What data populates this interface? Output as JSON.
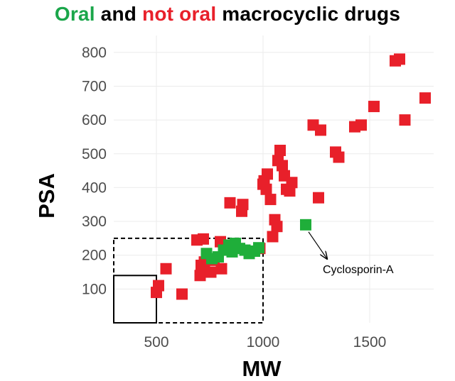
{
  "title_parts": [
    {
      "text": "Oral",
      "color": "#1aa64a"
    },
    {
      "text": " and ",
      "color": "#000000"
    },
    {
      "text": "not oral",
      "color": "#e8202a"
    },
    {
      "text": " macrocyclic drugs",
      "color": "#000000"
    }
  ],
  "chart_data": {
    "type": "scatter",
    "title": "Oral and not oral macrocyclic drugs",
    "xlabel": "MW",
    "ylabel": "PSA",
    "xlim": [
      300,
      1800
    ],
    "ylim": [
      0,
      850
    ],
    "x_ticks": [
      500,
      1000,
      1500
    ],
    "y_ticks": [
      100,
      200,
      300,
      400,
      500,
      600,
      700,
      800
    ],
    "grid": true,
    "marker": "square",
    "series": [
      {
        "name": "Oral",
        "color": "#1fae3a",
        "points": [
          [
            735,
            205
          ],
          [
            760,
            190
          ],
          [
            790,
            195
          ],
          [
            815,
            215
          ],
          [
            840,
            230
          ],
          [
            855,
            210
          ],
          [
            870,
            235
          ],
          [
            890,
            220
          ],
          [
            915,
            215
          ],
          [
            935,
            205
          ],
          [
            960,
            212
          ],
          [
            980,
            222
          ],
          [
            845,
            225
          ],
          [
            1200,
            290
          ]
        ]
      },
      {
        "name": "not oral",
        "color": "#e8202a",
        "points": [
          [
            500,
            90
          ],
          [
            510,
            110
          ],
          [
            545,
            160
          ],
          [
            620,
            85
          ],
          [
            690,
            245
          ],
          [
            720,
            248
          ],
          [
            705,
            140
          ],
          [
            710,
            170
          ],
          [
            725,
            180
          ],
          [
            755,
            150
          ],
          [
            770,
            185
          ],
          [
            800,
            240
          ],
          [
            805,
            160
          ],
          [
            845,
            355
          ],
          [
            900,
            330
          ],
          [
            905,
            350
          ],
          [
            985,
            220
          ],
          [
            1000,
            410
          ],
          [
            1005,
            420
          ],
          [
            1015,
            395
          ],
          [
            1020,
            440
          ],
          [
            1035,
            365
          ],
          [
            1045,
            255
          ],
          [
            1055,
            305
          ],
          [
            1065,
            285
          ],
          [
            1070,
            480
          ],
          [
            1080,
            510
          ],
          [
            1090,
            465
          ],
          [
            1100,
            435
          ],
          [
            1110,
            395
          ],
          [
            1125,
            390
          ],
          [
            1135,
            415
          ],
          [
            1235,
            585
          ],
          [
            1260,
            370
          ],
          [
            1270,
            570
          ],
          [
            1340,
            505
          ],
          [
            1355,
            490
          ],
          [
            1430,
            580
          ],
          [
            1460,
            585
          ],
          [
            1520,
            640
          ],
          [
            1620,
            775
          ],
          [
            1640,
            780
          ],
          [
            1665,
            600
          ],
          [
            1760,
            665
          ]
        ]
      }
    ],
    "annotations": [
      {
        "text": "Cyclosporin-A",
        "x": 1200,
        "y": 290
      }
    ],
    "boxes": [
      {
        "style": "dashed",
        "x": [
          300,
          1000
        ],
        "y": [
          0,
          250
        ]
      },
      {
        "style": "solid",
        "x": [
          300,
          500
        ],
        "y": [
          0,
          140
        ]
      }
    ]
  }
}
